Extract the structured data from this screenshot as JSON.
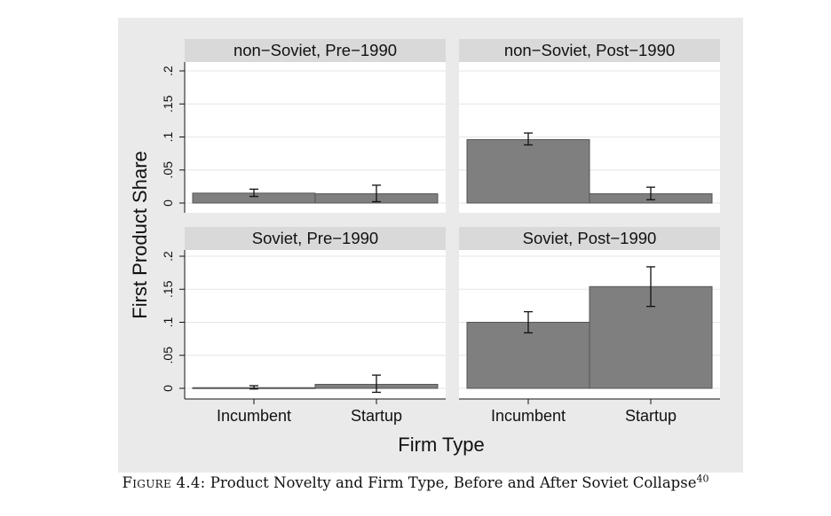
{
  "chart_data": {
    "type": "bar",
    "layout": "2x2 facets",
    "background": "#eaeaea",
    "panel_fill": "#ffffff",
    "strip_fill": "#d9d9d9",
    "bar_color": "#7f7f7f",
    "bar_edge_color": "#555555",
    "grid": true,
    "ylabel": "First Product Share",
    "xlabel": "Firm Type",
    "categories": [
      "Incumbent",
      "Startup"
    ],
    "ylim": [
      0,
      0.2
    ],
    "yticks": [
      0,
      0.05,
      0.1,
      0.15,
      0.2
    ],
    "ytick_labels": [
      "0",
      ".05",
      ".1",
      ".15",
      ".2"
    ],
    "panels": [
      {
        "title": "non−Soviet, Pre−1990",
        "values": [
          0.015,
          0.014
        ],
        "err_low": [
          0.01,
          0.002
        ],
        "err_high": [
          0.021,
          0.027
        ]
      },
      {
        "title": "non−Soviet, Post−1990",
        "values": [
          0.096,
          0.014
        ],
        "err_low": [
          0.088,
          0.005
        ],
        "err_high": [
          0.106,
          0.024
        ]
      },
      {
        "title": "Soviet, Pre−1990",
        "values": [
          0.001,
          0.006
        ],
        "err_low": [
          -0.001,
          -0.006
        ],
        "err_high": [
          0.004,
          0.02
        ]
      },
      {
        "title": "Soviet, Post−1990",
        "values": [
          0.1,
          0.154
        ],
        "err_low": [
          0.084,
          0.124
        ],
        "err_high": [
          0.116,
          0.184
        ]
      }
    ]
  },
  "caption": {
    "label": "Figure 4.4:",
    "text": "Product Novelty and Firm Type, Before and After Soviet Collapse",
    "footnote": "40"
  }
}
